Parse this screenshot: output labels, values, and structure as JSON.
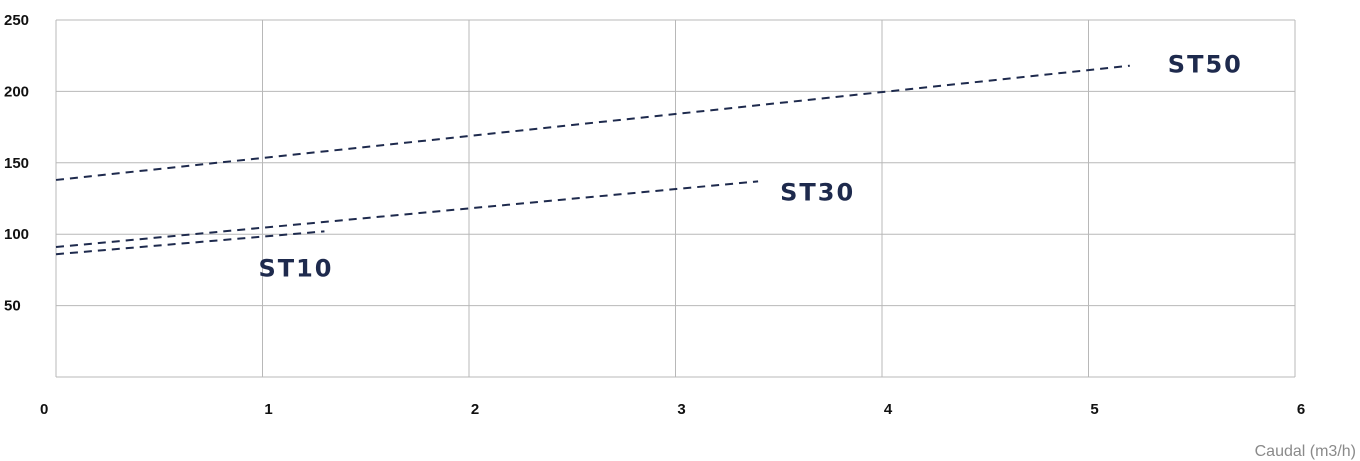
{
  "chart_data": {
    "type": "line",
    "title": "",
    "xlabel": "Caudal (m3/h)",
    "ylabel": "",
    "xlim": [
      0,
      6
    ],
    "ylim": [
      0,
      250
    ],
    "x_ticks": [
      "0",
      "1",
      "2",
      "3",
      "4",
      "5",
      "6"
    ],
    "y_ticks": [
      "50",
      "100",
      "150",
      "200",
      "250"
    ],
    "grid": true,
    "line_style": "dashed",
    "series": [
      {
        "name": "ST10",
        "x": [
          0,
          1.3
        ],
        "y": [
          86,
          102
        ]
      },
      {
        "name": "ST30",
        "x": [
          0,
          3.4
        ],
        "y": [
          91,
          137
        ]
      },
      {
        "name": "ST50",
        "x": [
          0,
          5.2
        ],
        "y": [
          138,
          218
        ]
      }
    ],
    "colors": {
      "line": "#1e2a4d",
      "grid": "#b8b8b8",
      "label": "#1e2a4d",
      "axis_title": "#8a8a8a"
    }
  }
}
